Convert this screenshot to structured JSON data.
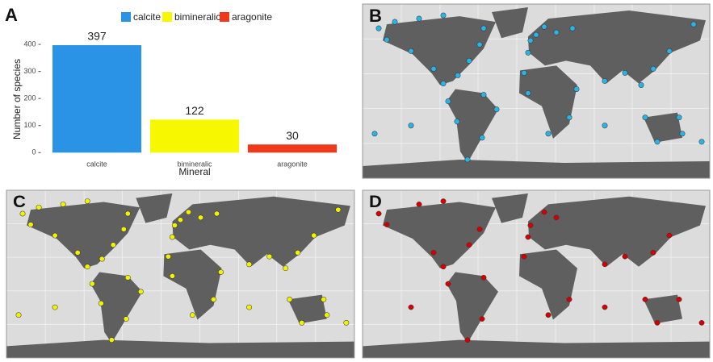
{
  "chart_data": {
    "type": "bar",
    "panel_label": "A",
    "categories": [
      "calcite",
      "bimineralic",
      "aragonite"
    ],
    "values": [
      397,
      122,
      30
    ],
    "colors": [
      "#2b93e6",
      "#f7f700",
      "#f0381a"
    ],
    "xlabel": "Mineral",
    "ylabel": "Number of species",
    "ylim": [
      -20,
      415
    ],
    "yticks": [
      0,
      100,
      200,
      300,
      400
    ]
  },
  "maps": [
    {
      "panel_label": "B",
      "color": "#29b3e6"
    },
    {
      "panel_label": "C",
      "color": "#f2f200"
    },
    {
      "panel_label": "D",
      "color": "#d40000"
    }
  ]
}
